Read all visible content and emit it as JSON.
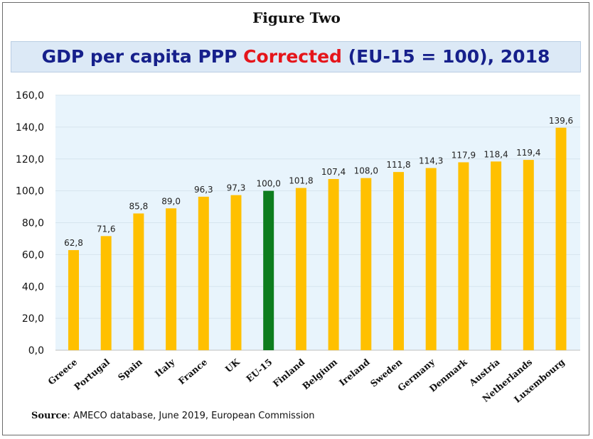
{
  "figure_label": "Figure Two",
  "title": {
    "part1": "GDP per capita PPP ",
    "highlight": "Corrected",
    "part2": " (EU-15 = 100), 2018"
  },
  "source": {
    "label": "Source",
    "text": ": AMECO database, June 2019, European Commission"
  },
  "colors": {
    "bar": "#ffc000",
    "highlight_bar": "#0d7d1e",
    "plot_bg": "#e8f4fc",
    "title_blue": "#16208b",
    "title_red": "#e5151b"
  },
  "chart_data": {
    "type": "bar",
    "title": "GDP per capita PPP Corrected (EU-15 = 100), 2018",
    "xlabel": "",
    "ylabel": "",
    "ylim": [
      0,
      160
    ],
    "ytick_step": 20,
    "ytick_labels": [
      "0,0",
      "20,0",
      "40,0",
      "60,0",
      "80,0",
      "100,0",
      "120,0",
      "140,0",
      "160,0"
    ],
    "categories": [
      "Greece",
      "Portugal",
      "Spain",
      "Italy",
      "France",
      "UK",
      "EU-15",
      "Finland",
      "Belgium",
      "Ireland",
      "Sweden",
      "Germany",
      "Denmark",
      "Austria",
      "Netherlands",
      "Luxembourg"
    ],
    "values": [
      62.8,
      71.6,
      85.8,
      89.0,
      96.3,
      97.3,
      100.0,
      101.8,
      107.4,
      108.0,
      111.8,
      114.3,
      117.9,
      118.4,
      119.4,
      139.6
    ],
    "value_labels": [
      "62,8",
      "71,6",
      "85,8",
      "89,0",
      "96,3",
      "97,3",
      "100,0",
      "101,8",
      "107,4",
      "108,0",
      "111,8",
      "114,3",
      "117,9",
      "118,4",
      "119,4",
      "139,6"
    ],
    "highlight_category": "EU-15",
    "grid": true
  }
}
